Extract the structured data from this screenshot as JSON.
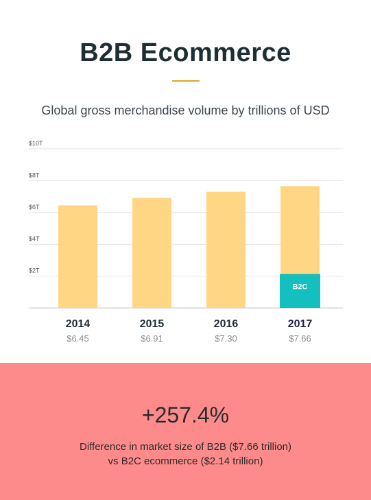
{
  "header": {
    "title": "B2B Ecommerce",
    "subtitle": "Global gross merchandise volume by trillions of USD"
  },
  "chart_data": {
    "type": "bar",
    "title": "",
    "xlabel": "",
    "ylabel": "",
    "categories": [
      "2014",
      "2015",
      "2016",
      "2017"
    ],
    "value_labels": [
      "$6.45",
      "$6.91",
      "$7.30",
      "$7.66"
    ],
    "values": [
      6.45,
      6.91,
      7.3,
      7.66
    ],
    "y_tick_values": [
      2,
      4,
      6,
      8,
      10
    ],
    "y_tick_labels": [
      "$2T",
      "$4T",
      "$6T",
      "$8T",
      "$10T"
    ],
    "ylim": [
      0,
      10
    ],
    "grid": true,
    "bar_color": "#ffd684",
    "overlay": {
      "label": "B2C",
      "category": "2017",
      "value": 2.14,
      "color": "#14bfbf"
    }
  },
  "summary": {
    "stat": "+257.4%",
    "description_line1": "Difference in market size of B2B ($7.66 trillion)",
    "description_line2": "vs B2C ecommerce ($2.14 trillion)",
    "background_color": "#fe8b8b"
  }
}
